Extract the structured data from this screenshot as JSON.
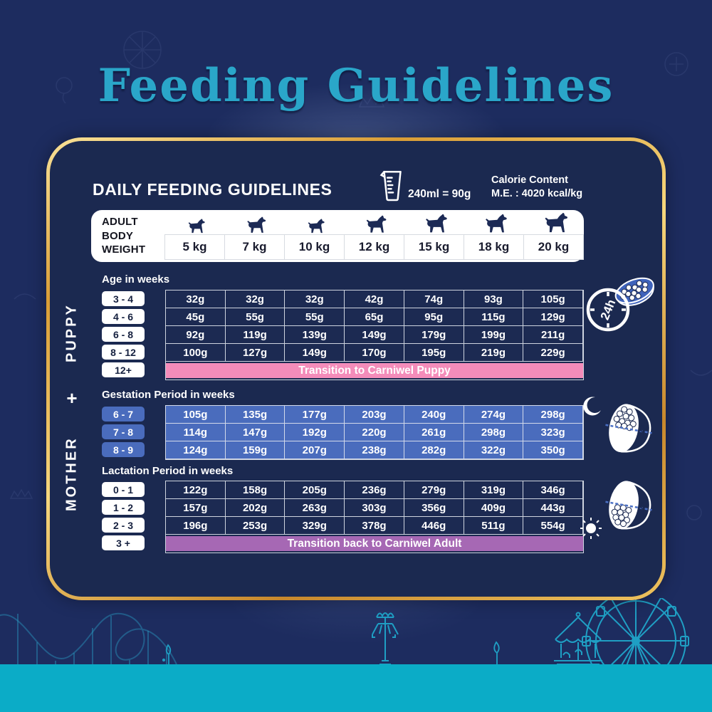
{
  "title": "Feeding Guidelines",
  "card": {
    "heading": "DAILY FEEDING GUIDELINES",
    "cup_note": "240ml = 90g",
    "calorie_line1": "Calorie Content",
    "calorie_line2": "M.E. : 4020 kcal/kg",
    "weight_header": {
      "label_lines": [
        "ADULT",
        "BODY",
        "WEIGHT"
      ],
      "weights": [
        "5 kg",
        "7 kg",
        "10 kg",
        "12 kg",
        "15 kg",
        "18 kg",
        "20 kg"
      ]
    },
    "sections": {
      "puppy": {
        "side_label": "PUPPY",
        "subtitle": "Age in weeks",
        "pill_style": "white",
        "cell_style": "navy",
        "rows": [
          {
            "label": "3 - 4",
            "values": [
              "32g",
              "32g",
              "32g",
              "42g",
              "74g",
              "93g",
              "105g"
            ]
          },
          {
            "label": "4 - 6",
            "values": [
              "45g",
              "55g",
              "55g",
              "65g",
              "95g",
              "115g",
              "129g"
            ]
          },
          {
            "label": "6 - 8",
            "values": [
              "92g",
              "119g",
              "139g",
              "149g",
              "179g",
              "199g",
              "211g"
            ]
          },
          {
            "label": "8 - 12",
            "values": [
              "100g",
              "127g",
              "149g",
              "170g",
              "195g",
              "219g",
              "229g"
            ]
          }
        ],
        "banner": {
          "label": "12+",
          "text": "Transition to Carniwel Puppy",
          "color": "#f48cba"
        }
      },
      "plus": "+",
      "mother": {
        "side_label": "MOTHER",
        "gestation": {
          "subtitle": "Gestation Period in weeks",
          "pill_style": "blue",
          "cell_style": "blue",
          "rows": [
            {
              "label": "6 - 7",
              "values": [
                "105g",
                "135g",
                "177g",
                "203g",
                "240g",
                "274g",
                "298g"
              ]
            },
            {
              "label": "7 - 8",
              "values": [
                "114g",
                "147g",
                "192g",
                "220g",
                "261g",
                "298g",
                "323g"
              ]
            },
            {
              "label": "8 - 9",
              "values": [
                "124g",
                "159g",
                "207g",
                "238g",
                "282g",
                "322g",
                "350g"
              ]
            }
          ]
        },
        "lactation": {
          "subtitle": "Lactation Period in weeks",
          "pill_style": "white",
          "cell_style": "navy",
          "rows": [
            {
              "label": "0 - 1",
              "values": [
                "122g",
                "158g",
                "205g",
                "236g",
                "279g",
                "319g",
                "346g"
              ]
            },
            {
              "label": "1 - 2",
              "values": [
                "157g",
                "202g",
                "263g",
                "303g",
                "356g",
                "409g",
                "443g"
              ]
            },
            {
              "label": "2 - 3",
              "values": [
                "196g",
                "253g",
                "329g",
                "378g",
                "446g",
                "511g",
                "554g"
              ]
            }
          ],
          "banner": {
            "label": "3 +",
            "text": "Transition back to Carniwel Adult",
            "color": "#a668b4"
          }
        }
      }
    },
    "icons": {
      "bowl_24h_label": "24h",
      "gestation_half_label": "1/2",
      "lactation_half_label": "1/2"
    }
  },
  "colors": {
    "background_navy": "#1d2c5f",
    "card_fill": "#1b2950",
    "gold_border": "#d99d36",
    "title_teal": "#2aa6c9",
    "table_blue": "#4a6cbd",
    "pink_banner": "#f48cba",
    "purple_banner": "#a668b4",
    "bottom_strip_teal": "#0bacc7",
    "park_line_teal": "#1f9fc4"
  }
}
